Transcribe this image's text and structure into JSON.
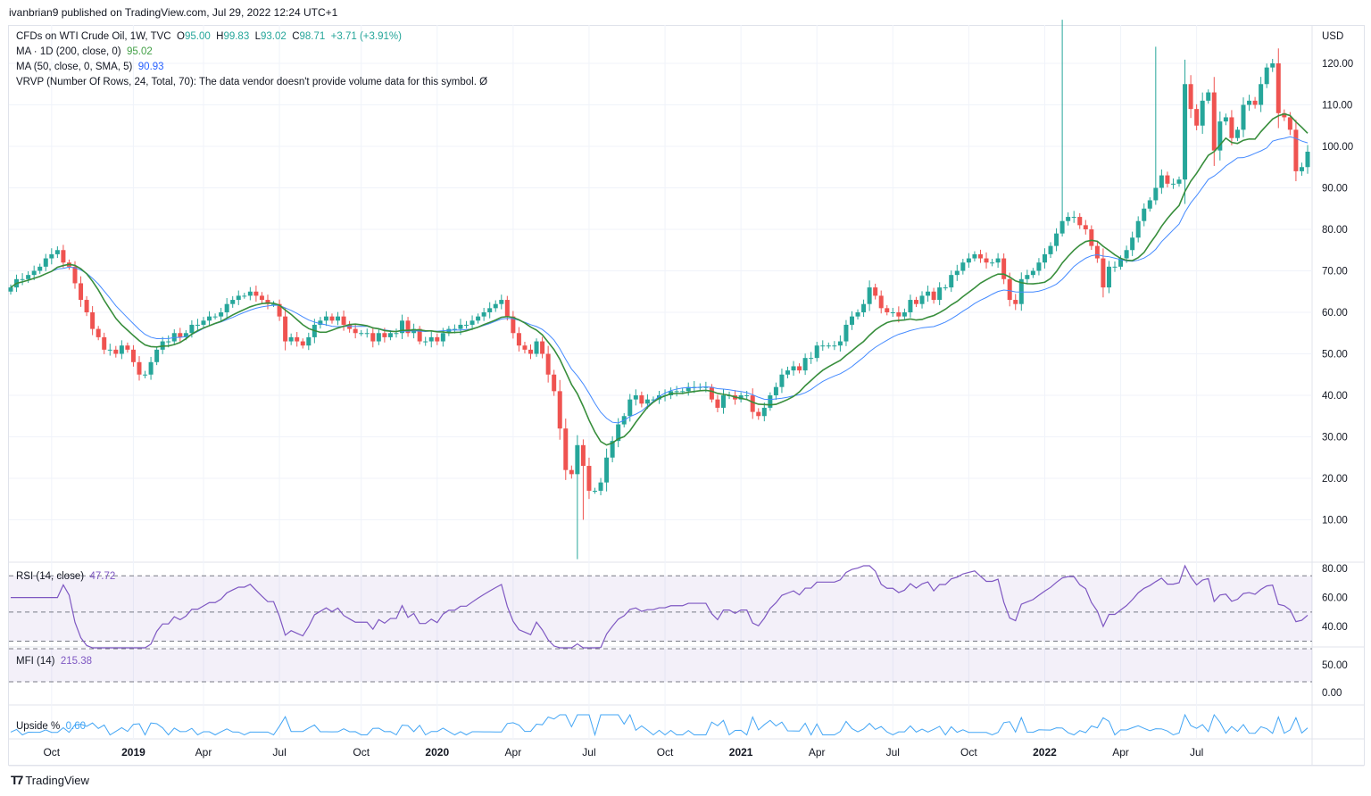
{
  "header": {
    "published": "ivanbrian9 published on TradingView.com, Jul 29, 2022 12:24 UTC+1"
  },
  "legend": {
    "symbol": "CFDs on WTI Crude Oil, 1W, TVC",
    "o_label": "O",
    "o": "95.00",
    "h_label": "H",
    "h": "99.83",
    "l_label": "L",
    "l": "93.02",
    "c_label": "C",
    "c": "98.71",
    "change": "+3.71 (+3.91%)",
    "ma200_label": "MA · 1D (200, close, 0)",
    "ma200_value": "95.02",
    "ma50_label": "MA (50, close, 0, SMA, 5)",
    "ma50_value": "90.93",
    "vrvp": "VRVP (Number Of Rows, 24, Total, 70): The data vendor doesn't provide volume data for this symbol.  Ø",
    "rsi_label": "RSI (14, close)",
    "rsi_value": "47.72",
    "mfi_label": "MFI (14)",
    "mfi_value": "215.38",
    "upside_label": "Upside %",
    "upside_value": "0.60"
  },
  "colors": {
    "up": "#26a69a",
    "down": "#ef5350",
    "ma200": "#388e3c",
    "ma50": "#448aff",
    "rsi": "#7e57c2",
    "upside": "#42a5f5"
  },
  "footer": {
    "brand": "TradingView"
  },
  "chart_data": {
    "type": "candlestick",
    "currency": "USD",
    "interval": "1W",
    "price_ticks": [
      "10.00",
      "20.00",
      "30.00",
      "40.00",
      "50.00",
      "60.00",
      "70.00",
      "80.00",
      "90.00",
      "100.00",
      "110.00",
      "120.00"
    ],
    "ylim": [
      0,
      128
    ],
    "rsi_ticks": [
      "80.00",
      "60.00",
      "40.00"
    ],
    "mfi_ticks": [
      "50.00",
      "0.00"
    ],
    "x_ticks": [
      {
        "label": "Oct",
        "week": 7,
        "bold": false
      },
      {
        "label": "2019",
        "week": 21,
        "bold": true
      },
      {
        "label": "Apr",
        "week": 33,
        "bold": false
      },
      {
        "label": "Jul",
        "week": 46,
        "bold": false
      },
      {
        "label": "Oct",
        "week": 60,
        "bold": false
      },
      {
        "label": "2020",
        "week": 73,
        "bold": true
      },
      {
        "label": "Apr",
        "week": 86,
        "bold": false
      },
      {
        "label": "Jul",
        "week": 99,
        "bold": false
      },
      {
        "label": "Oct",
        "week": 112,
        "bold": false
      },
      {
        "label": "2021",
        "week": 125,
        "bold": true
      },
      {
        "label": "Apr",
        "week": 138,
        "bold": false
      },
      {
        "label": "Jul",
        "week": 151,
        "bold": false
      },
      {
        "label": "Oct",
        "week": 164,
        "bold": false
      },
      {
        "label": "2022",
        "week": 177,
        "bold": true
      },
      {
        "label": "Apr",
        "week": 190,
        "bold": false
      },
      {
        "label": "Jul",
        "week": 203,
        "bold": false
      }
    ],
    "start_open": 65,
    "closes": [
      66,
      68,
      68,
      69,
      70,
      71,
      73,
      74,
      75,
      72,
      71,
      67,
      63,
      60,
      56,
      54,
      51,
      51,
      50,
      52,
      51,
      48,
      45,
      45,
      48,
      51,
      53,
      53,
      55,
      54,
      55,
      57,
      57,
      58,
      59,
      59,
      60,
      62,
      63,
      64,
      64,
      65,
      64,
      63,
      62,
      62,
      59,
      53,
      54,
      53,
      52,
      54,
      57,
      58,
      59,
      58,
      59,
      57,
      56,
      55,
      55,
      55,
      53,
      55,
      54,
      55,
      55,
      58,
      55,
      56,
      53,
      53,
      54,
      53,
      55,
      56,
      56,
      57,
      57,
      58,
      59,
      60,
      61,
      62,
      63,
      59,
      55,
      52,
      51,
      50,
      53,
      50,
      45,
      41,
      32,
      22,
      21,
      28,
      23,
      17,
      17,
      19,
      25,
      29,
      33,
      35,
      39,
      40,
      38,
      39,
      39,
      40,
      40,
      41,
      41,
      41,
      42,
      42,
      42,
      42,
      39,
      37,
      40,
      40,
      39,
      40,
      40,
      36,
      35,
      37,
      40,
      42,
      45,
      46,
      47,
      46,
      49,
      49,
      52,
      52,
      52,
      52,
      53,
      57,
      59,
      60,
      62,
      66,
      64,
      61,
      60,
      60,
      59,
      60,
      63,
      62,
      64,
      65,
      63,
      66,
      66,
      69,
      70,
      72,
      73,
      74,
      73,
      72,
      72,
      73,
      68,
      63,
      62,
      68,
      69,
      70,
      72,
      74,
      76,
      79,
      82,
      83,
      83,
      81,
      80,
      76,
      73,
      66,
      71,
      71,
      73,
      75,
      78,
      82,
      85,
      87,
      90,
      93,
      91,
      91,
      92,
      115,
      109,
      105,
      111,
      113,
      99,
      106,
      107,
      102,
      104,
      110,
      111,
      110,
      115,
      119,
      120,
      108,
      107,
      104,
      94,
      95,
      98.71
    ],
    "wick_overrides": [
      {
        "week": 97,
        "low": 0.5
      },
      {
        "week": 98,
        "low": 10
      },
      {
        "week": 180,
        "high": 130.5
      },
      {
        "week": 196,
        "high": 124
      }
    ]
  }
}
